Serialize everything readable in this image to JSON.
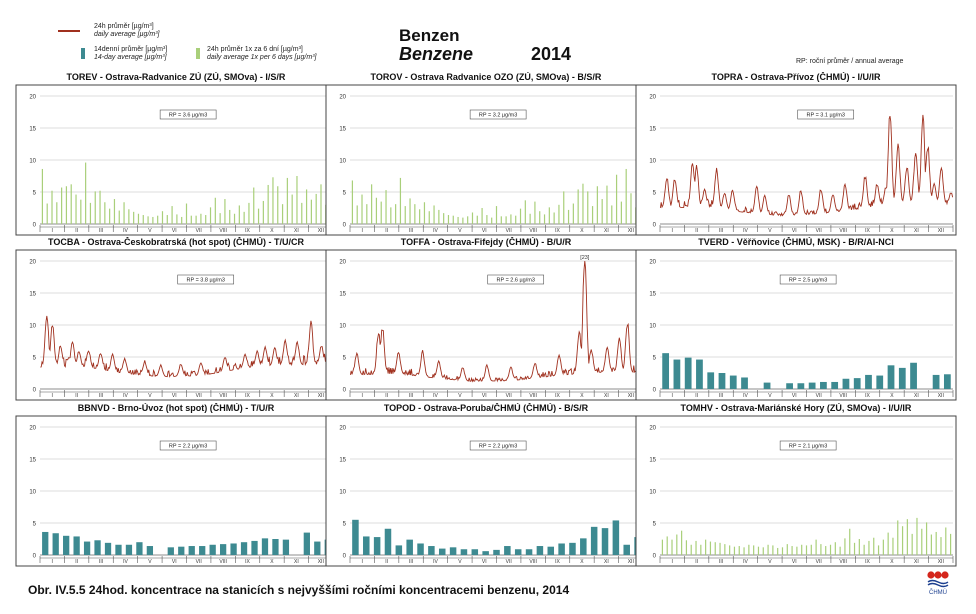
{
  "header": {
    "title_cz": "Benzen",
    "title_en": "Benzene",
    "year": "2014",
    "rp_note": "RP: roční průměr / annual average"
  },
  "legend": {
    "daily_cz": "24h průměr [µg/m³]",
    "daily_en": "daily average [µg/m³]",
    "biweekly_cz": "14denní průměr [µg/m³]",
    "biweekly_en": "14-day average [µg/m³]",
    "sixday_cz": "24h průměr 1x za 6 dní [µg/m³]",
    "sixday_en": "daily average 1x per 6 days [µg/m³]"
  },
  "caption": "Obr. IV.5.5  24hod. koncentrace na stanicích s nejvyššími ročními koncentracemi benzenu, 2014",
  "logo_text": "ČHMÚ",
  "colors": {
    "daily_line": "#a0301e",
    "biweekly_bar": "#3d8a91",
    "sixday_bar": "#a9cf7a"
  },
  "chart_data": [
    {
      "type": "bar",
      "title": "TOREV - Ostrava-Radvanice ZÚ (ZÚ, SMOva) - I/S/R",
      "series_kind": "sixday",
      "annotation": "RP = 3.6 µg/m3",
      "ylim": [
        0,
        20
      ],
      "yticks": [
        0,
        5,
        10,
        15,
        20
      ],
      "months": [
        "I",
        "II",
        "III",
        "IV",
        "V",
        "VI",
        "VII",
        "VIII",
        "IX",
        "X",
        "XI",
        "XII"
      ],
      "values": [
        8.6,
        3.2,
        5.2,
        3.4,
        5.7,
        5.9,
        6.2,
        4.6,
        3.8,
        9.6,
        3.3,
        5.1,
        5.2,
        3.4,
        2.4,
        3.9,
        2.1,
        3.4,
        2.3,
        1.9,
        1.6,
        1.4,
        1.2,
        1.1,
        1.3,
        2.0,
        1.4,
        2.8,
        1.5,
        1.1,
        3.2,
        1.3,
        1.3,
        1.6,
        1.4,
        2.6,
        4.1,
        1.7,
        3.9,
        2.2,
        1.6,
        2.9,
        1.9,
        3.3,
        5.7,
        2.4,
        3.6,
        6.1,
        7.3,
        5.9,
        3.1,
        7.2,
        4.6,
        7.5,
        3.3,
        5.4,
        3.8,
        4.7,
        6.2,
        3.0,
        4.3
      ]
    },
    {
      "type": "bar",
      "title": "TOROV - Ostrava Radvanice OZO (ZÚ, SMOva) - B/S/R",
      "series_kind": "sixday",
      "annotation": "RP = 3.2 µg/m3",
      "ylim": [
        0,
        20
      ],
      "yticks": [
        0,
        5,
        10,
        15,
        20
      ],
      "months": [
        "I",
        "II",
        "III",
        "IV",
        "V",
        "VI",
        "VII",
        "VIII",
        "IX",
        "X",
        "XI",
        "XII"
      ],
      "values": [
        6.8,
        2.9,
        4.6,
        3.1,
        6.2,
        4.1,
        3.5,
        5.3,
        2.6,
        3.1,
        7.2,
        2.8,
        4.0,
        3.1,
        2.3,
        3.4,
        2.0,
        2.9,
        2.2,
        1.7,
        1.4,
        1.3,
        1.1,
        1.0,
        1.2,
        1.8,
        1.3,
        2.5,
        1.4,
        1.0,
        2.8,
        1.2,
        1.2,
        1.5,
        1.3,
        2.4,
        3.7,
        1.6,
        3.5,
        2.0,
        1.5,
        2.6,
        1.8,
        3.0,
        5.1,
        2.2,
        3.2,
        5.4,
        6.3,
        5.1,
        2.8,
        5.9,
        3.9,
        6.0,
        2.9,
        7.7,
        3.5,
        8.6,
        4.8,
        2.6,
        5.1
      ]
    },
    {
      "type": "line",
      "title": "TOPRA - Ostrava-Přívoz (ČHMÚ) - I/U/IR",
      "series_kind": "daily",
      "annotation": "RP = 3.1 µg/m3",
      "ylim": [
        0,
        20
      ],
      "yticks": [
        0,
        5,
        10,
        15,
        20
      ],
      "months": [
        "I",
        "II",
        "III",
        "IV",
        "V",
        "VI",
        "VII",
        "VIII",
        "IX",
        "X",
        "XI",
        "XII"
      ],
      "peaks": [
        [
          8,
          7.5
        ],
        [
          18,
          7.3
        ],
        [
          40,
          9.8
        ],
        [
          45,
          9.5
        ],
        [
          55,
          5.5
        ],
        [
          70,
          9.2
        ],
        [
          80,
          5.0
        ],
        [
          90,
          5.5
        ],
        [
          120,
          6.2
        ],
        [
          130,
          4.5
        ],
        [
          160,
          4.8
        ],
        [
          175,
          5.5
        ],
        [
          200,
          5.8
        ],
        [
          215,
          4.8
        ],
        [
          230,
          6.5
        ],
        [
          255,
          7.8
        ],
        [
          270,
          6.5
        ],
        [
          281,
          6.0
        ],
        [
          286,
          18.0
        ],
        [
          296,
          13.0
        ],
        [
          307,
          9.5
        ],
        [
          318,
          12.0
        ],
        [
          327,
          17.5
        ],
        [
          333,
          13.0
        ],
        [
          341,
          6.5
        ],
        [
          350,
          9.0
        ],
        [
          362,
          5.0
        ]
      ],
      "base_profile": [
        [
          0,
          2.5
        ],
        [
          60,
          2.7
        ],
        [
          100,
          1.9
        ],
        [
          150,
          1.3
        ],
        [
          200,
          1.6
        ],
        [
          250,
          2.4
        ],
        [
          280,
          3.0
        ],
        [
          320,
          3.4
        ],
        [
          364,
          3.0
        ]
      ]
    },
    {
      "type": "line",
      "title": "TOCBA - Ostrava-Českobratrská (hot spot) (ČHMÚ) - T/U/CR",
      "series_kind": "daily",
      "annotation": "RP = 3.8 µg/m3",
      "ylim": [
        0,
        20
      ],
      "yticks": [
        0,
        5,
        10,
        15,
        20
      ],
      "months": [
        "I",
        "II",
        "III",
        "IV",
        "V",
        "VI",
        "VII",
        "VIII",
        "IX",
        "X",
        "XI",
        "XII"
      ],
      "peaks": [
        [
          8,
          12.0
        ],
        [
          15,
          10.5
        ],
        [
          25,
          7.0
        ],
        [
          40,
          7.5
        ],
        [
          48,
          6.0
        ],
        [
          60,
          6.2
        ],
        [
          75,
          5.8
        ],
        [
          90,
          5.5
        ],
        [
          105,
          5.0
        ],
        [
          130,
          4.5
        ],
        [
          150,
          3.8
        ],
        [
          175,
          4.0
        ],
        [
          200,
          4.2
        ],
        [
          230,
          5.0
        ],
        [
          255,
          5.5
        ],
        [
          270,
          6.0
        ],
        [
          280,
          6.8
        ],
        [
          292,
          6.5
        ],
        [
          305,
          8.0
        ],
        [
          320,
          7.5
        ],
        [
          337,
          11.0
        ],
        [
          350,
          7.0
        ],
        [
          360,
          6.0
        ]
      ],
      "base_profile": [
        [
          0,
          3.4
        ],
        [
          60,
          3.4
        ],
        [
          100,
          2.5
        ],
        [
          150,
          1.9
        ],
        [
          200,
          2.1
        ],
        [
          250,
          3.2
        ],
        [
          300,
          3.8
        ],
        [
          364,
          3.8
        ]
      ]
    },
    {
      "type": "line",
      "title": "TOFFA - Ostrava-Fifejdy (ČHMÚ) - B/U/R",
      "series_kind": "daily",
      "annotation": "RP = 2.6 µg/m3",
      "peak_label": "[23]",
      "ylim": [
        0,
        20
      ],
      "yticks": [
        0,
        5,
        10,
        15,
        20
      ],
      "months": [
        "I",
        "II",
        "III",
        "IV",
        "V",
        "VI",
        "VII",
        "VIII",
        "IX",
        "X",
        "XI",
        "XII"
      ],
      "peaks": [
        [
          8,
          5.8
        ],
        [
          35,
          9.5
        ],
        [
          40,
          10.0
        ],
        [
          60,
          6.0
        ],
        [
          90,
          6.2
        ],
        [
          110,
          4.5
        ],
        [
          140,
          3.5
        ],
        [
          170,
          3.8
        ],
        [
          200,
          3.5
        ],
        [
          230,
          4.2
        ],
        [
          260,
          5.5
        ],
        [
          285,
          9.5
        ],
        [
          292,
          23.0
        ],
        [
          300,
          6.5
        ],
        [
          320,
          7.0
        ],
        [
          335,
          8.5
        ],
        [
          345,
          11.0
        ],
        [
          360,
          4.5
        ]
      ],
      "base_profile": [
        [
          0,
          2.2
        ],
        [
          60,
          2.4
        ],
        [
          100,
          1.8
        ],
        [
          150,
          1.2
        ],
        [
          200,
          1.3
        ],
        [
          250,
          2.0
        ],
        [
          300,
          2.6
        ],
        [
          364,
          2.6
        ]
      ]
    },
    {
      "type": "bar",
      "title": "TVERD - Věřňovice (ČHMÚ, MSK) - B/R/AI-NCI",
      "series_kind": "biweekly",
      "annotation": "RP = 2.5 µg/m3",
      "ylim": [
        0,
        20
      ],
      "yticks": [
        0,
        5,
        10,
        15,
        20
      ],
      "months": [
        "I",
        "II",
        "III",
        "IV",
        "V",
        "VI",
        "VII",
        "VIII",
        "IX",
        "X",
        "XI",
        "XII"
      ],
      "values": [
        5.6,
        4.6,
        4.9,
        4.6,
        2.6,
        2.5,
        2.1,
        1.8,
        null,
        1.0,
        null,
        0.9,
        0.9,
        1.0,
        1.1,
        1.1,
        1.6,
        1.7,
        2.2,
        2.1,
        3.7,
        3.3,
        4.1,
        null,
        2.2,
        2.3
      ]
    },
    {
      "type": "bar",
      "title": "BBNVD - Brno-Úvoz (hot spot) (ČHMÚ) - T/U/R",
      "series_kind": "biweekly",
      "annotation": "RP = 2.2 µg/m3",
      "ylim": [
        0,
        20
      ],
      "yticks": [
        0,
        5,
        10,
        15,
        20
      ],
      "months": [
        "I",
        "II",
        "III",
        "IV",
        "V",
        "VI",
        "VII",
        "VIII",
        "IX",
        "X",
        "XI",
        "XII"
      ],
      "values": [
        3.6,
        3.4,
        3.0,
        2.9,
        2.1,
        2.3,
        1.9,
        1.6,
        1.6,
        2.0,
        1.4,
        null,
        1.2,
        1.3,
        1.4,
        1.4,
        1.6,
        1.7,
        1.8,
        2.0,
        2.2,
        2.6,
        2.5,
        2.4,
        null,
        3.5,
        2.1,
        2.4
      ]
    },
    {
      "type": "bar",
      "title": "TOPOD - Ostrava-Poruba/ČHMÚ (ČHMÚ) - B/S/R",
      "series_kind": "biweekly",
      "annotation": "RP = 2.2 µg/m3",
      "ylim": [
        0,
        20
      ],
      "yticks": [
        0,
        5,
        10,
        15,
        20
      ],
      "months": [
        "I",
        "II",
        "III",
        "IV",
        "V",
        "VI",
        "VII",
        "VIII",
        "IX",
        "X",
        "XI",
        "XII"
      ],
      "values": [
        5.5,
        2.9,
        2.8,
        4.1,
        1.5,
        2.4,
        1.8,
        1.4,
        1.0,
        1.2,
        0.9,
        0.9,
        0.6,
        0.8,
        1.4,
        0.9,
        0.9,
        1.4,
        1.3,
        1.8,
        1.9,
        2.6,
        4.4,
        4.2,
        5.4,
        1.6,
        2.8
      ]
    },
    {
      "type": "bar",
      "title": "TOMHV - Ostrava-Mariánské Hory (ZÚ, SMOva) - I/U/IR",
      "series_kind": "sixday",
      "annotation": "RP = 2.1 µg/m3",
      "ylim": [
        0,
        20
      ],
      "yticks": [
        0,
        5,
        10,
        15,
        20
      ],
      "months": [
        "I",
        "II",
        "III",
        "IV",
        "V",
        "VI",
        "VII",
        "VIII",
        "IX",
        "X",
        "XI",
        "XII"
      ],
      "values": [
        2.4,
        2.9,
        2.4,
        3.2,
        3.8,
        2.3,
        1.6,
        2.2,
        1.6,
        2.4,
        2.1,
        2.0,
        1.9,
        1.7,
        1.5,
        1.3,
        1.4,
        1.2,
        1.6,
        1.5,
        1.3,
        1.2,
        1.6,
        1.5,
        1.1,
        1.2,
        1.7,
        1.4,
        1.3,
        1.6,
        1.5,
        1.6,
        2.4,
        1.7,
        1.4,
        1.6,
        2.0,
        1.3,
        2.6,
        4.1,
        1.9,
        2.5,
        1.6,
        2.2,
        2.7,
        1.5,
        2.4,
        3.5,
        2.7,
        5.4,
        4.5,
        5.6,
        3.3,
        5.8,
        4.1,
        5.1,
        3.2,
        3.6,
        2.8,
        4.3,
        3.3
      ]
    }
  ]
}
